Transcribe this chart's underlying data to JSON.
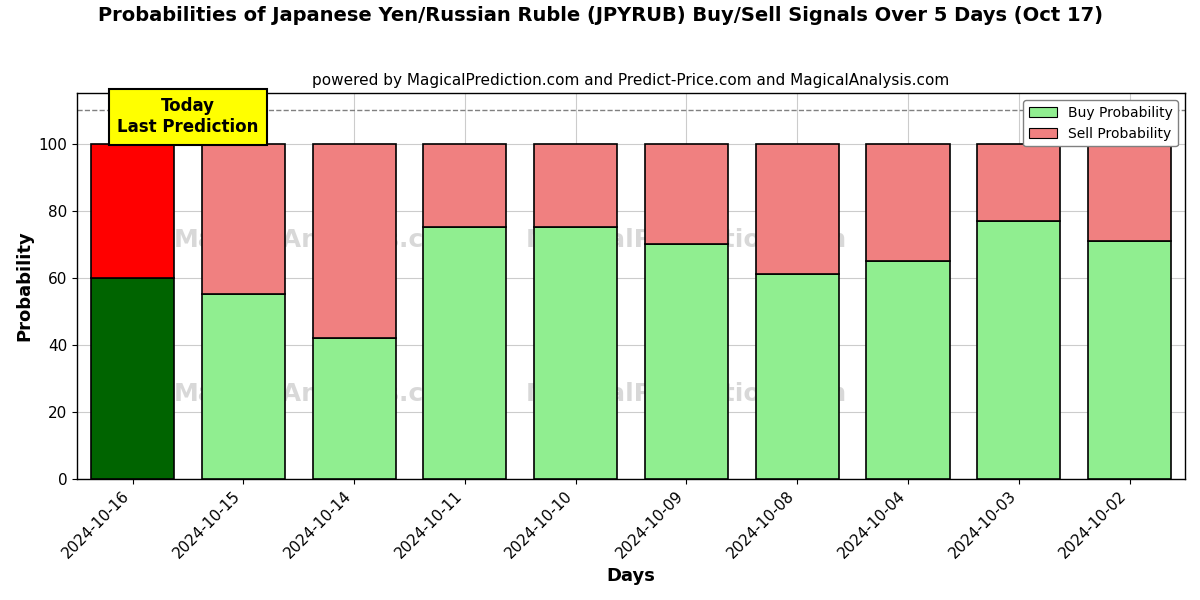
{
  "title": "Probabilities of Japanese Yen/Russian Ruble (JPYRUB) Buy/Sell Signals Over 5 Days (Oct 17)",
  "subtitle": "powered by MagicalPrediction.com and Predict-Price.com and MagicalAnalysis.com",
  "xlabel": "Days",
  "ylabel": "Probability",
  "dates": [
    "2024-10-16",
    "2024-10-15",
    "2024-10-14",
    "2024-10-11",
    "2024-10-10",
    "2024-10-09",
    "2024-10-08",
    "2024-10-04",
    "2024-10-03",
    "2024-10-02"
  ],
  "buy_values": [
    60,
    55,
    42,
    75,
    75,
    70,
    61,
    65,
    77,
    71
  ],
  "sell_values": [
    40,
    45,
    58,
    25,
    25,
    30,
    39,
    35,
    23,
    29
  ],
  "today_buy_color": "#006400",
  "today_sell_color": "#FF0000",
  "buy_color": "#90EE90",
  "sell_color": "#F08080",
  "today_annotation": "Today\nLast Prediction",
  "ylim": [
    0,
    115
  ],
  "yticks": [
    0,
    20,
    40,
    60,
    80,
    100
  ],
  "dashed_line_y": 110,
  "legend_buy_label": "Buy Probability",
  "legend_sell_label": "Sell Probability",
  "bar_edge_color": "black",
  "bar_edge_width": 1.2,
  "grid_color": "#cccccc",
  "background_color": "#ffffff",
  "title_fontsize": 14,
  "subtitle_fontsize": 11,
  "axis_label_fontsize": 13,
  "tick_fontsize": 11,
  "bar_width": 0.75
}
